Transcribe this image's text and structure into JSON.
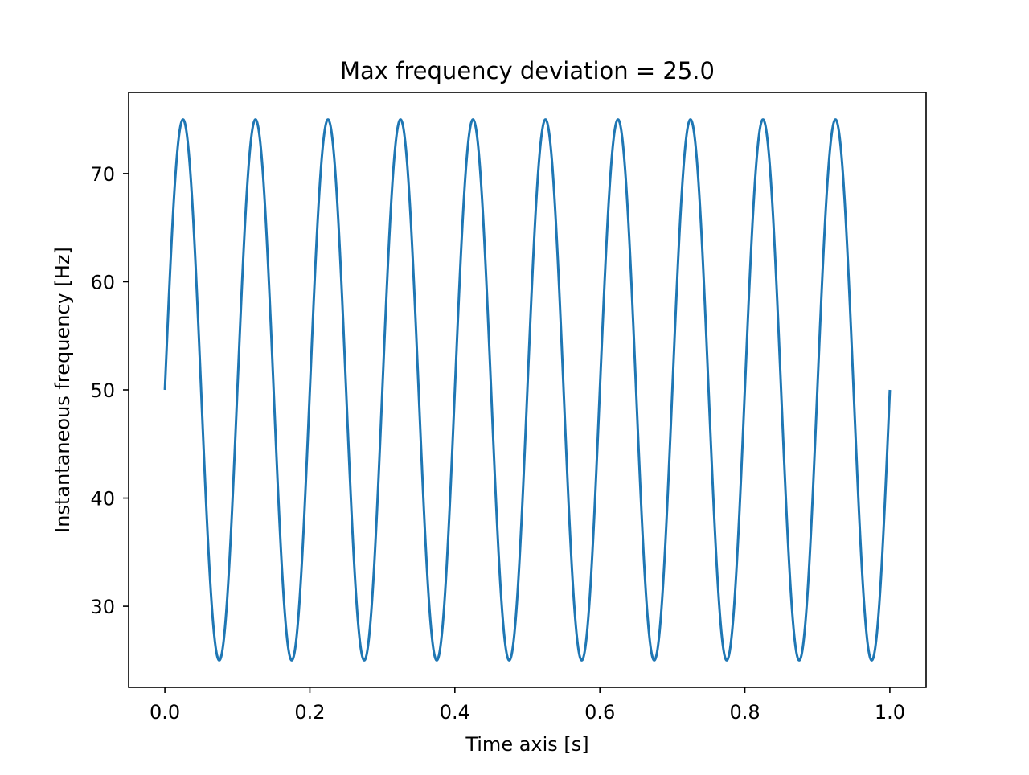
{
  "chart_data": {
    "type": "line",
    "title": "Max frequency deviation = 25.0",
    "xlabel": "Time axis [s]",
    "ylabel": "Instantaneous frequency [Hz]",
    "xlim": [
      -0.05,
      1.05
    ],
    "ylim": [
      22.5,
      77.5
    ],
    "xticks": [
      0.0,
      0.2,
      0.4,
      0.6,
      0.8,
      1.0
    ],
    "xtick_labels": [
      "0.0",
      "0.2",
      "0.4",
      "0.6",
      "0.8",
      "1.0"
    ],
    "yticks": [
      30,
      40,
      50,
      60,
      70
    ],
    "ytick_labels": [
      "30",
      "40",
      "50",
      "60",
      "70"
    ],
    "grid": false,
    "legend": "none",
    "series": [
      {
        "color": "#1f77b4",
        "function": "50 + 25*sin(2*pi*10*t)",
        "x_range": [
          0.0,
          1.0
        ],
        "carrier_hz": 50,
        "deviation_hz": 25,
        "modulation_hz": 10
      }
    ]
  }
}
